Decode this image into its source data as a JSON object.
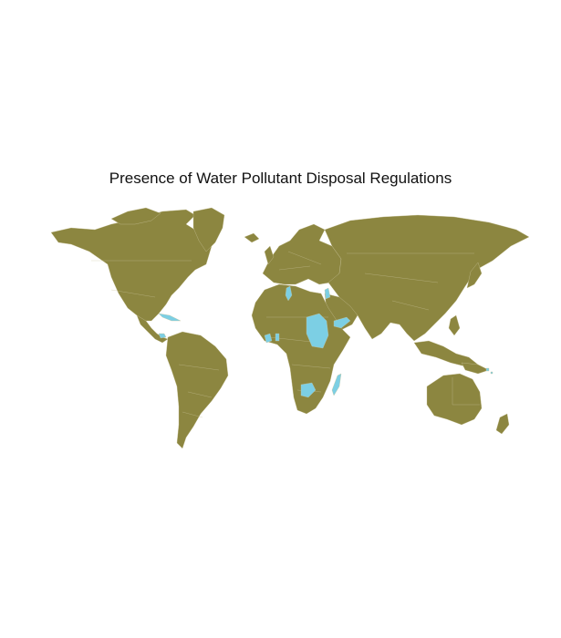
{
  "title": "Presence of Water Pollutant Disposal Regulations",
  "legend": {
    "shown": false
  },
  "colors": {
    "background": "#ffffff",
    "no_regulation_fill": "#8c8640",
    "regulation_fill": "#7ccfe4",
    "border_stroke": "#c9c39a",
    "title_text": "#111111"
  },
  "map": {
    "projection": "equirectangular world map",
    "highlighted_regions": [
      "Tunisia",
      "Israel / Palestine",
      "Sudan",
      "Yemen",
      "Cuba",
      "Panama",
      "Côte d'Ivoire",
      "Ghana",
      "Zambia",
      "Madagascar",
      "Pacific islands"
    ]
  }
}
